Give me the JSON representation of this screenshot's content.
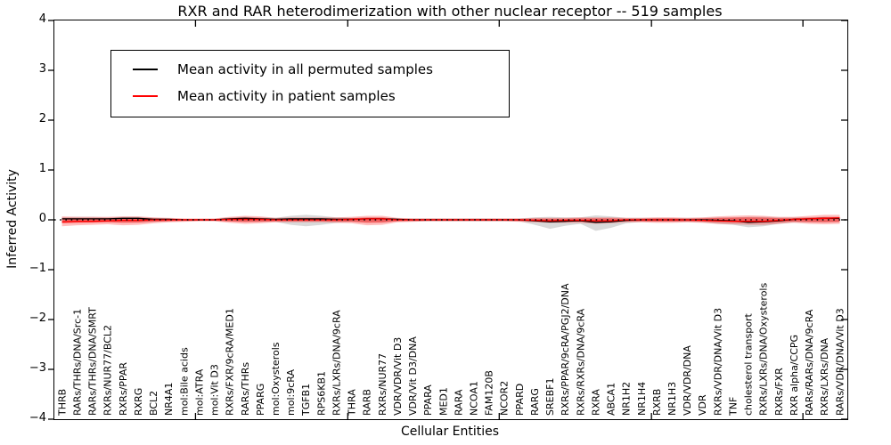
{
  "title": "RXR and RAR heterodimerization with other nuclear receptor -- 519 samples",
  "axes": {
    "ylabel": "Inferred Activity",
    "xlabel": "Cellular Entities",
    "yticks": [
      "4",
      "3",
      "2",
      "1",
      "0",
      "−1",
      "−2",
      "−3",
      "−4"
    ],
    "ylim": [
      -4,
      4
    ]
  },
  "legend": {
    "entries": [
      {
        "label": "Mean activity in all permuted samples",
        "color": "#000000"
      },
      {
        "label": "Mean activity in patient samples",
        "color": "#ff0000"
      }
    ]
  },
  "chart_data": {
    "type": "line",
    "title": "RXR and RAR heterodimerization with other nuclear receptor -- 519 samples",
    "xlabel": "Cellular Entities",
    "ylabel": "Inferred Activity",
    "ylim": [
      -4,
      4
    ],
    "grid": false,
    "legend_position": "upper left",
    "zero_line": {
      "style": "dotted",
      "color": "#000000",
      "y": 0
    },
    "categories": [
      "THRB",
      "RARs/THRs/DNA/Src-1",
      "RARs/THRs/DNA/SMRT",
      "RXRs/NUR77/BCL2",
      "RXRs/PPAR",
      "RXRG",
      "BCL2",
      "NR4A1",
      "mol:Bile acids",
      "mol:ATRA",
      "mol:Vit D3",
      "RXRs/FXR/9cRA/MED1",
      "RARs/THRs",
      "PPARG",
      "mol:Oxysterols",
      "mol:9cRA",
      "TGFB1",
      "RPS6KB1",
      "RXRs/LXRs/DNA/9cRA",
      "THRA",
      "RARB",
      "RXRs/NUR77",
      "VDR/VDR/Vit D3",
      "VDR/Vit D3/DNA",
      "PPARA",
      "MED1",
      "RARA",
      "NCOA1",
      "FAM120B",
      "NCOR2",
      "PPARD",
      "RARG",
      "SREBF1",
      "RXRs/PPAR/9cRA/PGJ2/DNA",
      "RXRs/RXRs/DNA/9cRA",
      "RXRA",
      "ABCA1",
      "NR1H2",
      "NR1H4",
      "RXRB",
      "NR1H3",
      "VDR/VDR/DNA",
      "VDR",
      "RXRs/VDR/DNA/Vit D3",
      "TNF",
      "cholesterol transport",
      "RXRs/LXRs/DNA/Oxysterols",
      "RXRs/FXR",
      "RXR alpha/CCPG",
      "RARs/RARs/DNA/9cRA",
      "RXRs/LXRs/DNA",
      "RARs/VDR/DNA/Vit D3"
    ],
    "series": [
      {
        "name": "Mean activity in all permuted samples",
        "color": "#000000",
        "values": [
          0.02,
          0.02,
          0.02,
          0.02,
          0.03,
          0.03,
          0.01,
          0.01,
          0,
          0,
          0,
          0.02,
          0.03,
          0.02,
          0.01,
          0.02,
          0.02,
          0.02,
          0.01,
          0.01,
          0.02,
          0.02,
          0.01,
          0,
          0,
          0,
          0,
          0,
          0,
          0,
          0,
          -0.02,
          -0.04,
          -0.03,
          -0.02,
          -0.05,
          -0.04,
          -0.01,
          0,
          0,
          0,
          0,
          0,
          -0.01,
          -0.02,
          -0.05,
          -0.04,
          -0.02,
          0.01,
          0.02,
          0.03,
          0.03
        ]
      },
      {
        "name": "Mean activity in patient samples",
        "color": "#ff0000",
        "values": [
          -0.04,
          -0.03,
          -0.03,
          -0.02,
          -0.01,
          -0.01,
          0,
          0,
          0,
          0,
          0,
          0.01,
          0.01,
          0.01,
          0,
          0,
          0,
          0,
          0,
          0.01,
          0.02,
          0.02,
          0,
          0,
          0,
          0,
          0,
          0,
          0,
          0,
          0,
          -0.01,
          -0.02,
          -0.01,
          -0.01,
          -0.02,
          -0.02,
          0,
          0,
          0,
          0,
          0,
          -0.01,
          -0.02,
          -0.03,
          -0.03,
          -0.03,
          -0.01,
          0.01,
          0.02,
          0.03,
          0.04
        ]
      }
    ],
    "bands": [
      {
        "name": "permuted-samples-std",
        "fill": "rgba(0,0,0,0.15)",
        "lo": [
          -0.05,
          -0.05,
          -0.05,
          -0.04,
          -0.05,
          -0.05,
          -0.04,
          -0.03,
          -0.02,
          -0.02,
          -0.02,
          -0.03,
          -0.04,
          -0.04,
          -0.04,
          -0.1,
          -0.13,
          -0.1,
          -0.06,
          -0.04,
          -0.05,
          -0.05,
          -0.03,
          -0.03,
          -0.03,
          -0.03,
          -0.03,
          -0.03,
          -0.03,
          -0.03,
          -0.03,
          -0.1,
          -0.18,
          -0.12,
          -0.08,
          -0.22,
          -0.16,
          -0.07,
          -0.04,
          -0.04,
          -0.04,
          -0.04,
          -0.05,
          -0.08,
          -0.1,
          -0.15,
          -0.13,
          -0.08,
          -0.05,
          -0.05,
          -0.05,
          -0.04
        ],
        "hi": [
          0.05,
          0.06,
          0.06,
          0.05,
          0.06,
          0.06,
          0.04,
          0.03,
          0.02,
          0.02,
          0.02,
          0.05,
          0.06,
          0.05,
          0.04,
          0.08,
          0.1,
          0.08,
          0.05,
          0.04,
          0.05,
          0.05,
          0.03,
          0.03,
          0.03,
          0.03,
          0.03,
          0.03,
          0.03,
          0.03,
          0.03,
          0.05,
          0.06,
          0.05,
          0.05,
          0.09,
          0.07,
          0.04,
          0.04,
          0.04,
          0.04,
          0.04,
          0.04,
          0.05,
          0.05,
          0.06,
          0.06,
          0.05,
          0.05,
          0.05,
          0.06,
          0.06
        ]
      },
      {
        "name": "patient-samples-std-outer",
        "fill": "rgba(255,0,0,0.25)",
        "lo": [
          -0.13,
          -0.11,
          -0.1,
          -0.09,
          -0.11,
          -0.1,
          -0.07,
          -0.05,
          -0.04,
          -0.03,
          -0.03,
          -0.06,
          -0.08,
          -0.07,
          -0.05,
          -0.05,
          -0.05,
          -0.05,
          -0.06,
          -0.07,
          -0.11,
          -0.1,
          -0.05,
          -0.04,
          -0.03,
          -0.03,
          -0.03,
          -0.03,
          -0.03,
          -0.03,
          -0.04,
          -0.05,
          -0.06,
          -0.06,
          -0.06,
          -0.08,
          -0.07,
          -0.05,
          -0.05,
          -0.06,
          -0.06,
          -0.05,
          -0.06,
          -0.08,
          -0.09,
          -0.1,
          -0.1,
          -0.08,
          -0.06,
          -0.08,
          -0.09,
          -0.08
        ],
        "hi": [
          0.07,
          0.06,
          0.06,
          0.06,
          0.07,
          0.07,
          0.05,
          0.04,
          0.03,
          0.03,
          0.03,
          0.06,
          0.08,
          0.07,
          0.04,
          0.05,
          0.05,
          0.05,
          0.05,
          0.06,
          0.08,
          0.08,
          0.04,
          0.03,
          0.03,
          0.03,
          0.03,
          0.03,
          0.03,
          0.03,
          0.03,
          0.04,
          0.04,
          0.04,
          0.05,
          0.05,
          0.05,
          0.04,
          0.04,
          0.05,
          0.05,
          0.04,
          0.05,
          0.07,
          0.08,
          0.09,
          0.08,
          0.06,
          0.06,
          0.08,
          0.1,
          0.1
        ]
      },
      {
        "name": "patient-samples-std-inner",
        "fill": "rgba(255,0,0,0.4)",
        "lo": [
          -0.072,
          -0.061,
          -0.055,
          -0.05,
          -0.061,
          -0.055,
          -0.039,
          -0.028,
          -0.022,
          -0.017,
          -0.017,
          -0.033,
          -0.044,
          -0.039,
          -0.028,
          -0.028,
          -0.028,
          -0.028,
          -0.033,
          -0.039,
          -0.061,
          -0.055,
          -0.028,
          -0.022,
          -0.017,
          -0.017,
          -0.017,
          -0.017,
          -0.017,
          -0.017,
          -0.022,
          -0.028,
          -0.033,
          -0.033,
          -0.033,
          -0.044,
          -0.039,
          -0.028,
          -0.028,
          -0.033,
          -0.033,
          -0.028,
          -0.033,
          -0.044,
          -0.05,
          -0.055,
          -0.055,
          -0.044,
          -0.033,
          -0.044,
          -0.05,
          -0.044
        ],
        "hi": [
          0.039,
          0.033,
          0.033,
          0.033,
          0.039,
          0.039,
          0.028,
          0.022,
          0.017,
          0.017,
          0.017,
          0.033,
          0.044,
          0.039,
          0.022,
          0.028,
          0.028,
          0.028,
          0.028,
          0.033,
          0.044,
          0.044,
          0.022,
          0.017,
          0.017,
          0.017,
          0.017,
          0.017,
          0.017,
          0.017,
          0.017,
          0.022,
          0.022,
          0.022,
          0.028,
          0.028,
          0.028,
          0.022,
          0.022,
          0.028,
          0.028,
          0.022,
          0.028,
          0.039,
          0.044,
          0.05,
          0.044,
          0.033,
          0.033,
          0.044,
          0.055,
          0.055
        ]
      }
    ]
  }
}
